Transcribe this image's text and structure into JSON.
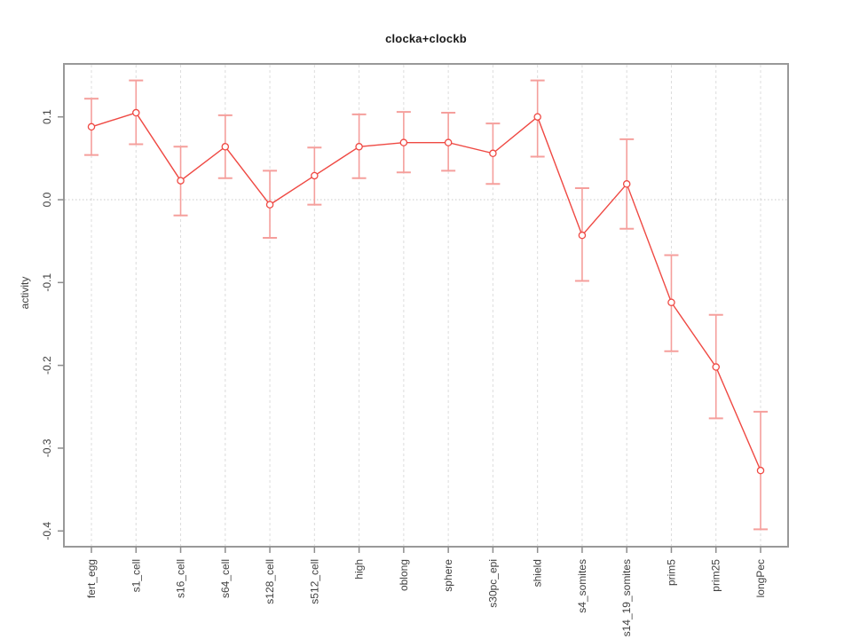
{
  "chart_data": {
    "type": "line",
    "title": "clocka+clockb",
    "ylabel": "activity",
    "xlabel": "",
    "legend": null,
    "grid": {
      "vertical_dashed_gridlines": true,
      "horizontal_zero_dotted_line": true
    },
    "point_style": "open-circle",
    "error_bars": true,
    "categories": [
      "fert_egg",
      "s1_cell",
      "s16_cell",
      "s64_cell",
      "s128_cell",
      "s512_cell",
      "high",
      "oblong",
      "sphere",
      "s30pc_epi",
      "shield",
      "s4_somites",
      "s14_19_somites",
      "prim5",
      "prim25",
      "longPec"
    ],
    "series": [
      {
        "name": "activity",
        "values": [
          0.088,
          0.105,
          0.023,
          0.064,
          -0.006,
          0.029,
          0.064,
          0.069,
          0.069,
          0.056,
          0.1,
          -0.043,
          0.019,
          -0.124,
          -0.202,
          -0.327
        ],
        "upper": [
          0.122,
          0.144,
          0.064,
          0.102,
          0.035,
          0.063,
          0.103,
          0.106,
          0.105,
          0.092,
          0.144,
          0.014,
          0.073,
          -0.067,
          -0.139,
          -0.256
        ],
        "lower": [
          0.054,
          0.067,
          -0.019,
          0.026,
          -0.046,
          -0.006,
          0.026,
          0.033,
          0.035,
          0.019,
          0.052,
          -0.098,
          -0.035,
          -0.183,
          -0.264,
          -0.398
        ]
      }
    ],
    "yticks": [
      {
        "label": "0.1",
        "value": 0.1
      },
      {
        "label": "0.0",
        "value": 0.0
      },
      {
        "label": "-0.1",
        "value": -0.1
      },
      {
        "label": "-0.2",
        "value": -0.2
      },
      {
        "label": "-0.3",
        "value": -0.3
      },
      {
        "label": "-0.4",
        "value": -0.4
      }
    ],
    "ylim": [
      -0.419,
      0.164
    ],
    "colors": {
      "line": "#ef4943",
      "point_fill": "#ffffff",
      "error_bar": "#f59f9c",
      "gridline": "#dcdcdc",
      "zero_line": "#c9c9c9",
      "box": "#999999",
      "tick": "#8d8d8d",
      "text": "#3f3f3f"
    }
  }
}
